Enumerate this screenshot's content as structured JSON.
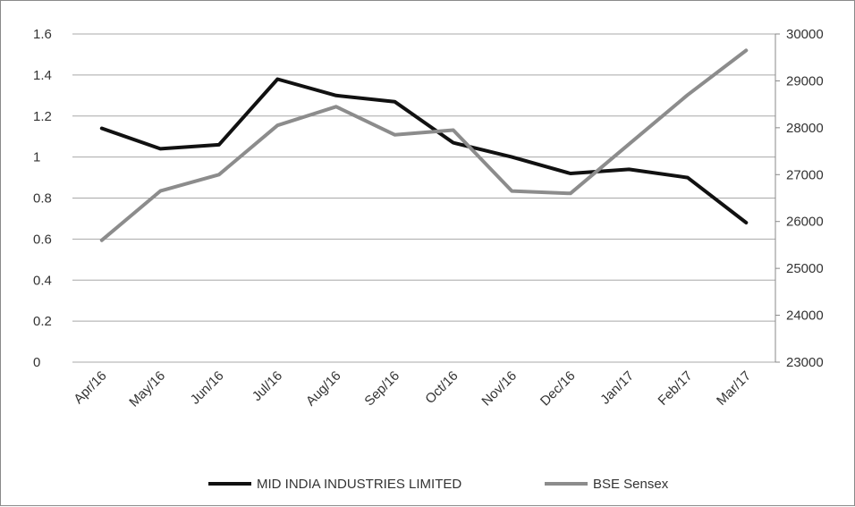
{
  "chart_data": {
    "type": "line",
    "title": "",
    "categories": [
      "Apr/16",
      "May/16",
      "Jun/16",
      "Jul/16",
      "Aug/16",
      "Sep/16",
      "Oct/16",
      "Nov/16",
      "Dec/16",
      "Jan/17",
      "Feb/17",
      "Mar/17"
    ],
    "series": [
      {
        "name": "MID INDIA INDUSTRIES LIMITED",
        "axis": "left",
        "color": "#111111",
        "values": [
          1.14,
          1.04,
          1.06,
          1.38,
          1.3,
          1.27,
          1.07,
          1.0,
          0.92,
          0.94,
          0.9,
          0.68
        ]
      },
      {
        "name": "BSE Sensex",
        "axis": "right",
        "color": "#8c8c8c",
        "values": [
          25600,
          26650,
          27000,
          28050,
          28450,
          27850,
          27950,
          26650,
          26600,
          27650,
          28700,
          29650
        ]
      }
    ],
    "y_left": {
      "min": 0,
      "max": 1.6,
      "ticks": [
        "0",
        "0.2",
        "0.4",
        "0.6",
        "0.8",
        "1",
        "1.2",
        "1.4",
        "1.6"
      ]
    },
    "y_right": {
      "min": 23000,
      "max": 30000,
      "ticks": [
        "23000",
        "24000",
        "25000",
        "26000",
        "27000",
        "28000",
        "29000",
        "30000"
      ]
    },
    "grid": true,
    "legend_position": "bottom"
  }
}
